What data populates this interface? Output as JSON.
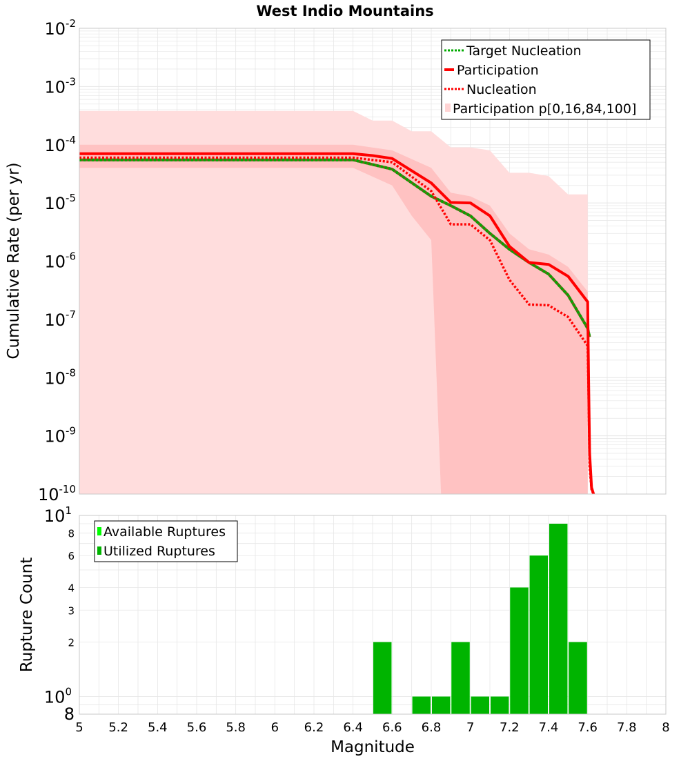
{
  "colors": {
    "target_nucleation": "#00aa00",
    "participation": "#ff0000",
    "nucleation": "#ff0000",
    "fan_outer": "#ffdddd",
    "fan_inner": "#ffc2c2",
    "available_ruptures": "#00ff00",
    "utilized_ruptures": "#00b400",
    "grid": "#e6e6e6",
    "model_dark_line": "#5a6e14"
  },
  "chart_data": [
    {
      "type": "line",
      "title": "West Indio Mountains",
      "ylabel": "Cumulative Rate (per yr)",
      "xlabel": "",
      "xlim": [
        5,
        8
      ],
      "ylim": [
        1e-10,
        0.01
      ],
      "yscale": "log",
      "y_ticks": [
        {
          "base": "10",
          "exp": "-2"
        },
        {
          "base": "10",
          "exp": "-3"
        },
        {
          "base": "10",
          "exp": "-4"
        },
        {
          "base": "10",
          "exp": "-5"
        },
        {
          "base": "10",
          "exp": "-6"
        },
        {
          "base": "10",
          "exp": "-7"
        },
        {
          "base": "10",
          "exp": "-8"
        },
        {
          "base": "10",
          "exp": "-9"
        },
        {
          "base": "10",
          "exp": "-10"
        }
      ],
      "grid": true,
      "legend_position": "top-right",
      "series": [
        {
          "name": "Target Nucleation",
          "style": "dotted",
          "x": [
            5.0,
            6.4,
            6.6,
            6.8,
            6.9,
            7.0,
            7.1,
            7.2,
            7.3,
            7.4,
            7.5,
            7.6,
            7.61
          ],
          "y": [
            5.5e-05,
            5.5e-05,
            3.8e-05,
            1.3e-05,
            9e-06,
            6e-06,
            3e-06,
            1.6e-06,
            9.5e-07,
            6e-07,
            2.6e-07,
            7e-08,
            5e-08
          ]
        },
        {
          "name": "Participation",
          "style": "solid",
          "x": [
            5.0,
            6.4,
            6.5,
            6.6,
            6.8,
            6.9,
            7.0,
            7.1,
            7.2,
            7.3,
            7.4,
            7.5,
            7.6,
            7.605,
            7.61,
            7.62,
            7.63
          ],
          "y": [
            7e-05,
            7e-05,
            6.5e-05,
            5.8e-05,
            2.2e-05,
            1.02e-05,
            1e-05,
            6e-06,
            1.8e-06,
            9.5e-07,
            8.8e-07,
            5.5e-07,
            2e-07,
            8e-09,
            5e-10,
            1.3e-10,
            1e-10
          ]
        },
        {
          "name": "Nucleation",
          "style": "dotted",
          "x": [
            5.0,
            6.4,
            6.6,
            6.8,
            6.9,
            7.0,
            7.1,
            7.2,
            7.3,
            7.4,
            7.5,
            7.6,
            7.605,
            7.61,
            7.62,
            7.63
          ],
          "y": [
            6e-05,
            6e-05,
            5e-05,
            1.6e-05,
            4.3e-06,
            4.3e-06,
            2.3e-06,
            4.8e-07,
            1.8e-07,
            1.75e-07,
            1.1e-07,
            3.5e-08,
            5e-09,
            3e-10,
            1.2e-10,
            1e-10
          ]
        },
        {
          "name": "Participation p[0,16,84,100]",
          "style": "fan",
          "outer_upper": {
            "x": [
              5.0,
              6.4,
              6.5,
              6.6,
              6.7,
              6.8,
              6.9,
              7.0,
              7.1,
              7.2,
              7.3,
              7.4,
              7.5,
              7.6
            ],
            "y": [
              0.00038,
              0.00038,
              0.00026,
              0.00026,
              0.00017,
              0.00017,
              9e-05,
              9e-05,
              8e-05,
              3.3e-05,
              3.3e-05,
              2.9e-05,
              1.4e-05,
              1.4e-05
            ]
          },
          "outer_lower": {
            "x": [
              5.0,
              6.8,
              6.8,
              7.6
            ],
            "y": [
              1e-10,
              1e-10,
              1e-10,
              1e-10
            ]
          },
          "inner_upper": {
            "x": [
              5.0,
              6.4,
              6.6,
              6.8,
              6.9,
              7.0,
              7.1,
              7.2,
              7.3,
              7.4,
              7.5,
              7.6
            ],
            "y": [
              0.0001,
              0.0001,
              8e-05,
              4e-05,
              1.5e-05,
              1.3e-05,
              9e-06,
              3e-06,
              1.6e-06,
              1.3e-06,
              8e-07,
              3e-07
            ]
          },
          "inner_lower": {
            "x": [
              5.0,
              6.4,
              6.6,
              6.7,
              6.8,
              6.85,
              7.6
            ],
            "y": [
              4e-05,
              4e-05,
              2e-05,
              6e-06,
              2.3e-06,
              1e-10,
              1e-10
            ]
          }
        }
      ]
    },
    {
      "type": "bar",
      "ylabel": "Rupture Count",
      "xlabel": "Magnitude",
      "xlim": [
        5,
        8
      ],
      "x_ticks": [
        "5",
        "5.2",
        "5.4",
        "5.6",
        "5.8",
        "6",
        "6.2",
        "6.4",
        "6.6",
        "6.8",
        "7",
        "7.2",
        "7.4",
        "7.6",
        "7.8",
        "8"
      ],
      "ylim": [
        0.8,
        10
      ],
      "yscale": "log",
      "y_ticks": [
        {
          "value": 10,
          "base": "10",
          "exp": "1"
        },
        {
          "value": 8,
          "label": "8"
        },
        {
          "value": 6,
          "label": "6"
        },
        {
          "value": 4,
          "label": "4"
        },
        {
          "value": 3,
          "label": "3"
        },
        {
          "value": 2,
          "label": "2"
        },
        {
          "value": 1,
          "base": "10",
          "exp": "0"
        },
        {
          "value": 0.8,
          "label": "8"
        }
      ],
      "grid": true,
      "legend_position": "top-left",
      "bin_width": 0.1,
      "x": [
        6.55,
        6.75,
        6.85,
        6.95,
        7.05,
        7.15,
        7.25,
        7.35,
        7.45,
        7.55
      ],
      "series": [
        {
          "name": "Available Ruptures",
          "values": [
            2,
            1,
            1,
            2,
            1,
            1,
            4,
            6,
            9,
            2
          ]
        },
        {
          "name": "Utilized Ruptures",
          "values": [
            2,
            1,
            1,
            2,
            1,
            1,
            4,
            6,
            9,
            2
          ]
        }
      ]
    }
  ]
}
